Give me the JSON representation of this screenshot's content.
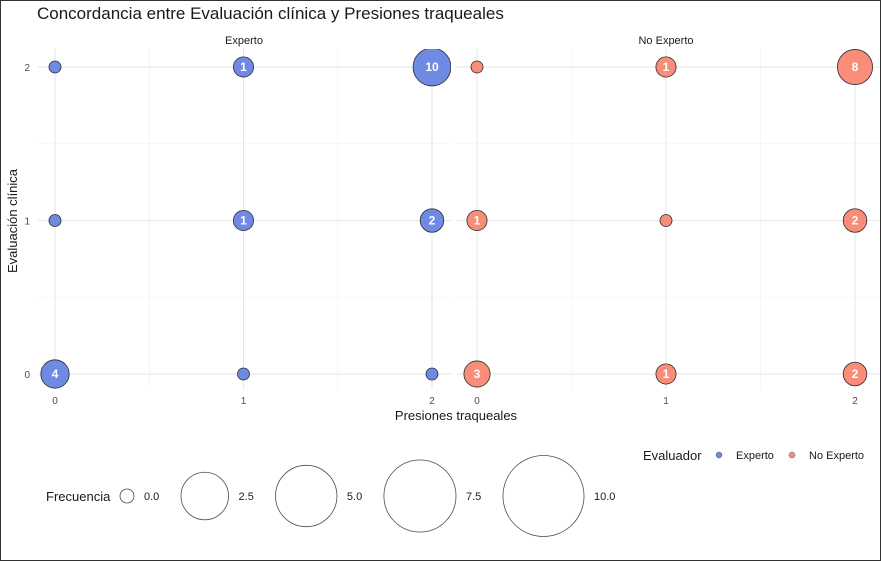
{
  "chart_data": {
    "type": "scatter",
    "subtype": "bubble",
    "title": "Concordancia entre Evaluación clínica y Presiones traqueales",
    "xlabel": "Presiones traqueales",
    "ylabel": "Evaluación clínica",
    "x_ticks": [
      "0",
      "1",
      "2"
    ],
    "y_ticks": [
      "0",
      "1",
      "2"
    ],
    "xlim": [
      0,
      2
    ],
    "ylim": [
      0,
      2
    ],
    "grid": true,
    "facets": [
      {
        "name": "Experto",
        "color": "#6F8AE3",
        "points": [
          {
            "x": 0,
            "y": 2,
            "freq": 0,
            "label": ""
          },
          {
            "x": 1,
            "y": 2,
            "freq": 1,
            "label": "1"
          },
          {
            "x": 2,
            "y": 2,
            "freq": 10,
            "label": "10"
          },
          {
            "x": 0,
            "y": 1,
            "freq": 0,
            "label": ""
          },
          {
            "x": 1,
            "y": 1,
            "freq": 1,
            "label": "1"
          },
          {
            "x": 2,
            "y": 1,
            "freq": 2,
            "label": "2"
          },
          {
            "x": 0,
            "y": 0,
            "freq": 4,
            "label": "4"
          },
          {
            "x": 1,
            "y": 0,
            "freq": 0,
            "label": ""
          },
          {
            "x": 2,
            "y": 0,
            "freq": 0,
            "label": ""
          }
        ]
      },
      {
        "name": "No Experto",
        "color": "#FA8C7A",
        "points": [
          {
            "x": 0,
            "y": 2,
            "freq": 0,
            "label": ""
          },
          {
            "x": 1,
            "y": 2,
            "freq": 1,
            "label": "1"
          },
          {
            "x": 2,
            "y": 2,
            "freq": 8,
            "label": "8"
          },
          {
            "x": 0,
            "y": 1,
            "freq": 1,
            "label": "1"
          },
          {
            "x": 1,
            "y": 1,
            "freq": 0,
            "label": ""
          },
          {
            "x": 2,
            "y": 1,
            "freq": 2,
            "label": "2"
          },
          {
            "x": 0,
            "y": 0,
            "freq": 3,
            "label": "3"
          },
          {
            "x": 1,
            "y": 0,
            "freq": 1,
            "label": "1"
          },
          {
            "x": 2,
            "y": 0,
            "freq": 2,
            "label": "2"
          }
        ]
      }
    ],
    "legend_color": {
      "title": "Evaluador",
      "position": "bottom-right",
      "entries": [
        {
          "label": "Experto",
          "color": "#6F8AE3"
        },
        {
          "label": "No Experto",
          "color": "#FA8C7A"
        }
      ]
    },
    "legend_size": {
      "title": "Frecuencia",
      "position": "bottom-left",
      "entries": [
        {
          "label": "0.0",
          "value": 0
        },
        {
          "label": "2.5",
          "value": 2.5
        },
        {
          "label": "5.0",
          "value": 5
        },
        {
          "label": "7.5",
          "value": 7.5
        },
        {
          "label": "10.0",
          "value": 10
        }
      ]
    }
  }
}
